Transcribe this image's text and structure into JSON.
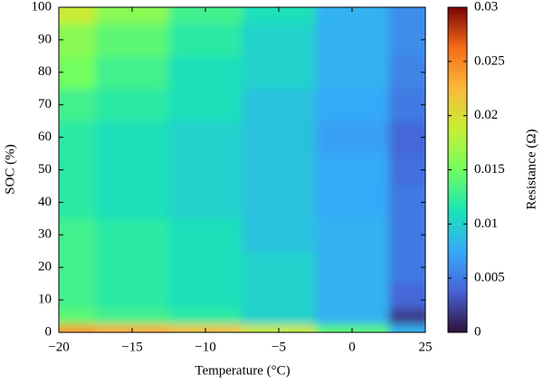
{
  "chart_data": {
    "type": "heatmap",
    "x_label": "Temperature (°C)",
    "y_label": "SOC (%)",
    "colorbar_label": "Resistance (Ω)",
    "x": [
      "−20",
      "−15",
      "−10",
      "−5",
      "0",
      "25"
    ],
    "y": [
      0,
      5,
      10,
      20,
      30,
      40,
      50,
      60,
      70,
      80,
      90,
      100
    ],
    "ylim": [
      0,
      100
    ],
    "yticks": [
      0,
      10,
      20,
      30,
      40,
      50,
      60,
      70,
      80,
      90,
      100
    ],
    "z": [
      [
        0.024,
        0.023,
        0.022,
        0.019,
        0.014,
        0.008
      ],
      [
        0.014,
        0.013,
        0.012,
        0.01,
        0.008,
        0.002
      ],
      [
        0.013,
        0.012,
        0.011,
        0.01,
        0.008,
        0.004
      ],
      [
        0.013,
        0.012,
        0.011,
        0.01,
        0.008,
        0.005
      ],
      [
        0.013,
        0.012,
        0.011,
        0.009,
        0.008,
        0.005
      ],
      [
        0.012,
        0.011,
        0.01,
        0.009,
        0.0075,
        0.005
      ],
      [
        0.012,
        0.011,
        0.01,
        0.009,
        0.0075,
        0.0045
      ],
      [
        0.012,
        0.011,
        0.01,
        0.009,
        0.007,
        0.004
      ],
      [
        0.013,
        0.012,
        0.011,
        0.009,
        0.0075,
        0.005
      ],
      [
        0.015,
        0.013,
        0.011,
        0.01,
        0.008,
        0.0055
      ],
      [
        0.016,
        0.014,
        0.012,
        0.01,
        0.008,
        0.006
      ],
      [
        0.019,
        0.016,
        0.013,
        0.011,
        0.008,
        0.006
      ]
    ],
    "zlim": [
      0,
      0.03
    ],
    "zticks": [
      0,
      0.005,
      0.01,
      0.015,
      0.02,
      0.025,
      0.03
    ],
    "colormap": [
      "#30123b",
      "#4662d7",
      "#36aaf9",
      "#1ae4b6",
      "#72fe5e",
      "#c7ef34",
      "#faba39",
      "#f66b19",
      "#7a0403"
    ]
  }
}
